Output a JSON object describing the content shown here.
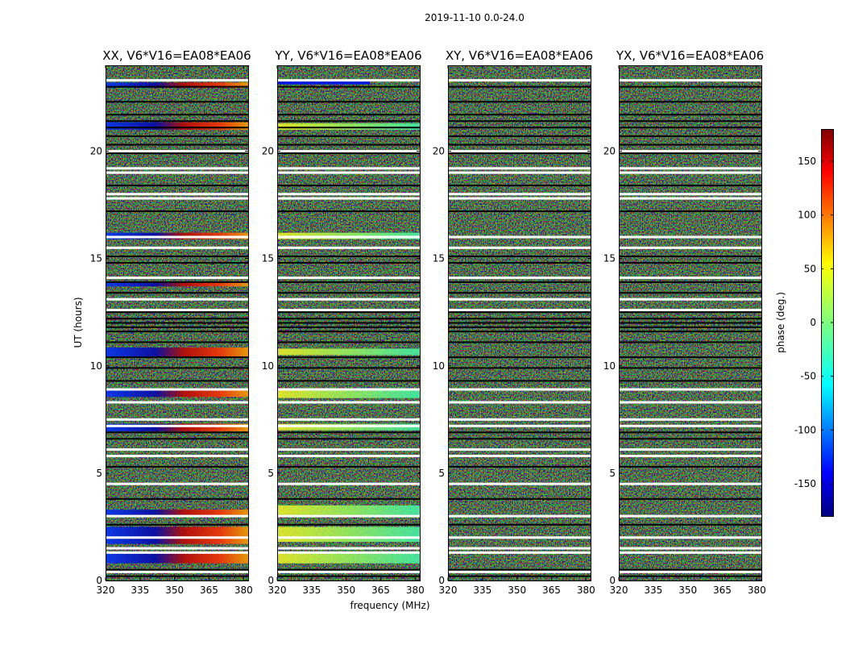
{
  "figure_title": "2019-11-10 0.0-24.0",
  "chart_data": {
    "type": "heatmap",
    "title": "2019-11-10 0.0-24.0",
    "xlabel": "frequency (MHz)",
    "ylabel": "UT (hours)",
    "xlim": [
      320,
      382
    ],
    "ylim": [
      0,
      24
    ],
    "xticks": [
      320,
      335,
      350,
      365,
      380
    ],
    "yticks": [
      0,
      5,
      10,
      15,
      20
    ],
    "colorbar": {
      "label": "phase (deg.)",
      "range": [
        -180,
        180
      ],
      "ticks": [
        -150,
        -100,
        -50,
        0,
        50,
        100,
        150
      ],
      "colormap": "jet"
    },
    "panels": [
      {
        "title": "XX, V6*V16=EA08*EA06",
        "pattern": "phase-gradient"
      },
      {
        "title": "YY, V6*V16=EA08*EA06",
        "pattern": "green-yellow-bands"
      },
      {
        "title": "XY, V6*V16=EA08*EA06",
        "pattern": "noise"
      },
      {
        "title": "YX, V6*V16=EA08*EA06",
        "pattern": "noise"
      }
    ],
    "flagged_hours_white": [
      0.4,
      1.3,
      1.5,
      2.0,
      3.0,
      4.5,
      5.8,
      6.1,
      7.2,
      7.5,
      8.3,
      8.9,
      12.6,
      13.1,
      14.1,
      15.5,
      16.0,
      17.8,
      18.0,
      19.0,
      19.2,
      20.0,
      23.3
    ],
    "gap_hours_black": [
      0.2,
      0.5,
      2.6,
      3.8,
      5.3,
      6.6,
      6.9,
      9.3,
      9.9,
      10.4,
      11.1,
      11.6,
      11.8,
      12.0,
      12.2,
      12.5,
      13.4,
      13.9,
      14.8,
      15.1,
      17.2,
      18.4,
      19.9,
      20.3,
      20.7,
      21.1,
      21.4,
      21.7,
      22.3,
      23.0
    ],
    "colors": {
      "background": "#ffffff",
      "flag": "#ffffff",
      "gap": "#000000"
    }
  }
}
